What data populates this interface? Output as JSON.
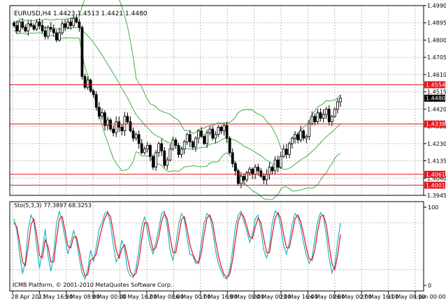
{
  "chart_data": [
    {
      "type": "candlestick",
      "title": "EURUSD,H4  1.4423 1.4513 1.4421 1.4480",
      "x_tick_labels": [
        "28 Apr 2011",
        "2 May 16:00",
        "5 May 08:00",
        "9 May 00:00",
        "10 May 16:00",
        "12 May 08:00",
        "16 May 00:00",
        "17 May 16:00",
        "19 May 08:00",
        "20 May 00:00",
        "23 May 16:00",
        "24 May 08:00",
        "26 May 00:00",
        "27 May 16:00",
        "31 May 08:00",
        "1 Jun 00:00"
      ],
      "y_tick_labels": [
        "1.4990",
        "1.4895",
        "1.4800",
        "1.4705",
        "1.4610",
        "1.4515",
        "1.4420",
        "1.4325",
        "1.4230",
        "1.4135",
        "1.4040",
        "1.3945"
      ],
      "ylim": [
        1.3945,
        1.499
      ],
      "horizontal_lines": [
        {
          "label": "1.4554",
          "value": 1.4554
        },
        {
          "label": "1.4338",
          "value": 1.4338
        },
        {
          "label": "1.4061",
          "value": 1.4061
        },
        {
          "label": "1.4001",
          "value": 1.4001
        }
      ],
      "current_price": "1.4480",
      "close": [
        1.488,
        1.485,
        1.49,
        1.487,
        1.485,
        1.489,
        1.488,
        1.486,
        1.49,
        1.488,
        1.485,
        1.482,
        1.487,
        1.486,
        1.484,
        1.48,
        1.484,
        1.489,
        1.487,
        1.49,
        1.488,
        1.492,
        1.49,
        1.487,
        1.46,
        1.454,
        1.458,
        1.452,
        1.45,
        1.443,
        1.438,
        1.44,
        1.433,
        1.436,
        1.431,
        1.429,
        1.435,
        1.432,
        1.43,
        1.438,
        1.435,
        1.43,
        1.426,
        1.428,
        1.423,
        1.418,
        1.42,
        1.422,
        1.416,
        1.41,
        1.418,
        1.423,
        1.419,
        1.411,
        1.414,
        1.42,
        1.425,
        1.422,
        1.417,
        1.42,
        1.424,
        1.428,
        1.424,
        1.421,
        1.426,
        1.43,
        1.427,
        1.423,
        1.429,
        1.431,
        1.426,
        1.428,
        1.432,
        1.43,
        1.433,
        1.426,
        1.418,
        1.412,
        1.408,
        1.401,
        1.405,
        1.403,
        1.407,
        1.409,
        1.406,
        1.41,
        1.408,
        1.405,
        1.403,
        1.406,
        1.41,
        1.408,
        1.414,
        1.41,
        1.416,
        1.42,
        1.417,
        1.423,
        1.426,
        1.428,
        1.425,
        1.43,
        1.426,
        1.427,
        1.434,
        1.438,
        1.435,
        1.44,
        1.437,
        1.439,
        1.442,
        1.435,
        1.438,
        1.442,
        1.446,
        1.448
      ],
      "panels": [
        {
          "name": "price",
          "ylim": [
            1.3945,
            1.499
          ]
        },
        {
          "name": "stochastic",
          "ylim": [
            0,
            100
          ]
        }
      ]
    },
    {
      "type": "line",
      "title": "Sto(5,3,3) 77.3897 68.3253",
      "ylim": [
        0,
        100
      ],
      "y_tick_labels": [
        "100",
        "0"
      ],
      "series": [
        {
          "values": [
            85,
            70,
            40,
            15,
            30,
            72,
            90,
            82,
            50,
            22,
            45,
            72,
            38,
            18,
            42,
            80,
            95,
            80,
            60,
            40,
            55,
            70,
            58,
            35,
            15,
            8,
            20,
            45,
            30,
            50,
            72,
            80,
            92,
            95,
            78,
            52,
            30,
            38,
            58,
            45,
            20,
            12,
            10,
            22,
            46,
            75,
            88,
            70,
            50,
            40,
            55,
            72,
            92,
            95,
            75,
            45,
            32,
            52,
            78,
            92,
            85,
            60,
            40,
            38,
            28,
            30,
            55,
            80,
            92,
            88,
            70,
            45,
            28,
            18,
            10,
            8,
            20,
            45,
            75,
            90,
            95,
            82,
            70,
            55,
            65,
            85,
            90,
            70,
            45,
            35,
            50,
            80,
            95,
            92,
            75,
            50,
            40,
            55,
            78,
            92,
            88,
            75,
            55,
            38,
            28,
            36,
            60,
            82,
            93,
            88,
            65,
            35,
            16,
            25,
            55,
            80
          ]
        },
        {
          "values": [
            80,
            75,
            55,
            30,
            25,
            50,
            78,
            85,
            65,
            38,
            35,
            58,
            50,
            30,
            30,
            60,
            85,
            88,
            70,
            50,
            48,
            62,
            62,
            45,
            25,
            12,
            14,
            32,
            35,
            40,
            58,
            74,
            86,
            93,
            88,
            68,
            45,
            35,
            47,
            52,
            35,
            18,
            12,
            15,
            32,
            58,
            80,
            80,
            62,
            45,
            48,
            62,
            82,
            92,
            85,
            62,
            42,
            42,
            62,
            84,
            88,
            72,
            52,
            40,
            32,
            28,
            42,
            66,
            86,
            90,
            80,
            58,
            38,
            24,
            14,
            10,
            14,
            32,
            58,
            82,
            92,
            88,
            76,
            62,
            60,
            75,
            86,
            80,
            60,
            42,
            42,
            65,
            86,
            93,
            85,
            65,
            48,
            48,
            66,
            85,
            90,
            82,
            66,
            48,
            34,
            32,
            46,
            70,
            88,
            90,
            78,
            52,
            28,
            20,
            38,
            65
          ]
        }
      ]
    }
  ],
  "colors": {
    "candle": "#000000",
    "band": "#3cb043",
    "level_line": "#e4141c",
    "level_label_bg": "#e4141c",
    "price_label_bg": "#000000",
    "grid": "#bdbdbd",
    "stoch_main": "#1fb5c6",
    "stoch_signal": "#e4141c"
  },
  "footer": "ICMB Platform, © 2001-2010 MetaQuotes Software Corp."
}
